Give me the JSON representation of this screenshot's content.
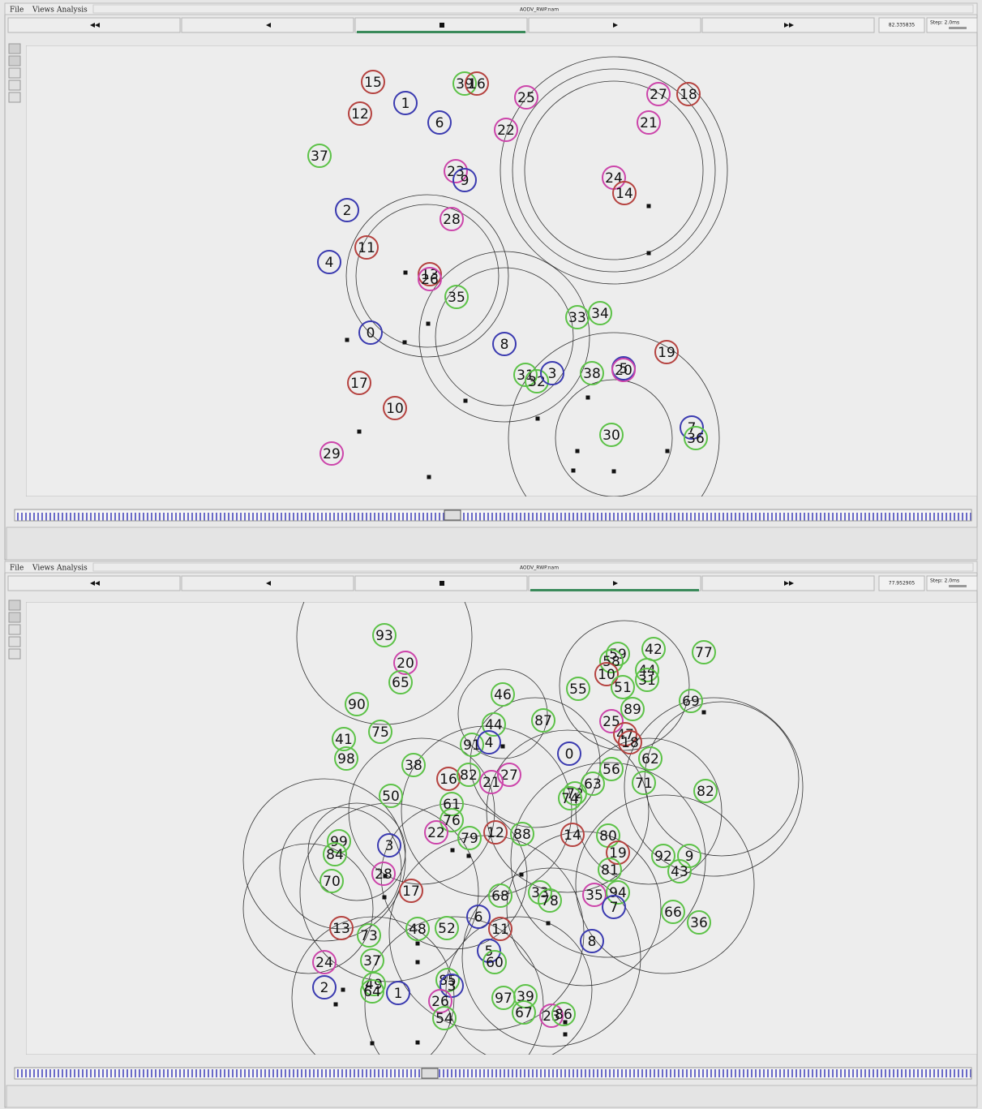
{
  "windows": [
    {
      "menu": [
        "File",
        "Views",
        "Analysis"
      ],
      "title": "AODV_RWP.nam",
      "time": "82.335835",
      "step": "Step: 2.0ms",
      "nodes": [
        "15",
        "39",
        "16",
        "1",
        "25",
        "27",
        "18",
        "12",
        "6",
        "22",
        "21",
        "37",
        "23",
        "9",
        "24",
        "14",
        "2",
        "28",
        "11",
        "4",
        "13",
        "26",
        "35",
        "33",
        "34",
        "0",
        "8",
        "19",
        "31",
        "32",
        "3",
        "38",
        "5",
        "20",
        "17",
        "10",
        "30",
        "7",
        "36",
        "29"
      ]
    },
    {
      "menu": [
        "File",
        "Views",
        "Analysis"
      ],
      "title": "AODV_RWP.nam",
      "time": "77.952905",
      "step": "Step: 2.0ms",
      "nodes": [
        "93",
        "20",
        "65",
        "59",
        "58",
        "42",
        "77",
        "10",
        "44",
        "31",
        "55",
        "51",
        "46",
        "69",
        "90",
        "89",
        "87",
        "25",
        "44",
        "75",
        "47",
        "18",
        "41",
        "91",
        "4",
        "0",
        "62",
        "98",
        "38",
        "56",
        "16",
        "82",
        "27",
        "21",
        "63",
        "71",
        "82",
        "72",
        "74",
        "50",
        "61",
        "76",
        "22",
        "79",
        "12",
        "88",
        "14",
        "80",
        "99",
        "3",
        "84",
        "19",
        "92",
        "9",
        "81",
        "43",
        "28",
        "70",
        "17",
        "68",
        "33",
        "78",
        "35",
        "94",
        "7",
        "66",
        "36",
        "6",
        "48",
        "52",
        "11",
        "13",
        "73",
        "8",
        "5",
        "60",
        "24",
        "37",
        "2",
        "49",
        "64",
        "1",
        "85",
        "3",
        "97",
        "39",
        "26",
        "54",
        "67",
        "23",
        "86"
      ]
    }
  ]
}
